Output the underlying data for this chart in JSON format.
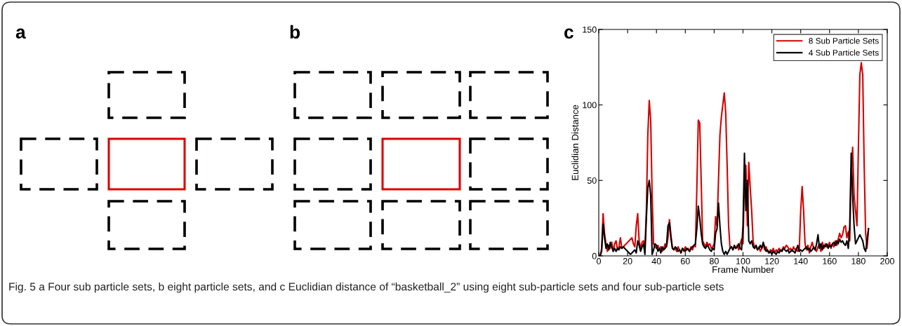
{
  "chart_data": {
    "type": "line",
    "xlabel": "Frame Number",
    "ylabel": "Euclidian Distance",
    "annotations": [
      "a",
      "b",
      "c",
      "Fig. 5 a Four sub particle sets, b eight particle sets, and c Euclidian distance of “basketball_2” using eight sub-particle sets and four sub-particle sets"
    ],
    "x": [
      1,
      2,
      3,
      4,
      5,
      6,
      7,
      8,
      9,
      10,
      11,
      12,
      13,
      14,
      15,
      16,
      17,
      18,
      19,
      20,
      21,
      22,
      23,
      24,
      25,
      26,
      27,
      28,
      29,
      30,
      31,
      32,
      33,
      34,
      35,
      36,
      37,
      38,
      39,
      40,
      41,
      42,
      43,
      44,
      45,
      46,
      47,
      48,
      49,
      50,
      51,
      52,
      53,
      54,
      55,
      56,
      57,
      58,
      59,
      60,
      61,
      62,
      63,
      64,
      65,
      66,
      67,
      68,
      69,
      70,
      71,
      72,
      73,
      74,
      75,
      76,
      77,
      78,
      79,
      80,
      81,
      82,
      83,
      84,
      85,
      86,
      87,
      88,
      89,
      90,
      91,
      92,
      93,
      94,
      95,
      96,
      97,
      98,
      99,
      100,
      101,
      102,
      103,
      104,
      105,
      106,
      107,
      108,
      109,
      110,
      111,
      112,
      113,
      114,
      115,
      116,
      117,
      118,
      119,
      120,
      121,
      122,
      123,
      124,
      125,
      126,
      127,
      128,
      129,
      130,
      131,
      132,
      133,
      134,
      135,
      136,
      137,
      138,
      139,
      140,
      141,
      142,
      143,
      144,
      145,
      146,
      147,
      148,
      149,
      150,
      151,
      152,
      153,
      154,
      155,
      156,
      157,
      158,
      159,
      160,
      161,
      162,
      163,
      164,
      165,
      166,
      167,
      168,
      169,
      170,
      171,
      172,
      173,
      174,
      175,
      176,
      177,
      178,
      179,
      180,
      181,
      182,
      183,
      184,
      185,
      186,
      187
    ],
    "series": [
      {
        "name": "8 Sub Particle Sets",
        "color": "#d40000",
        "values": [
          0,
          5,
          28,
          15,
          8,
          3,
          7,
          5,
          9,
          3,
          8,
          10,
          4,
          6,
          12,
          5,
          6,
          7,
          8,
          9,
          10,
          11,
          12,
          8,
          6,
          20,
          28,
          10,
          5,
          9,
          10,
          5,
          30,
          80,
          103,
          90,
          40,
          8,
          6,
          5,
          7,
          4,
          6,
          3,
          5,
          8,
          6,
          12,
          24,
          14,
          6,
          4,
          5,
          3,
          6,
          4,
          2,
          5,
          3,
          6,
          4,
          5,
          3,
          6,
          4,
          7,
          6,
          45,
          90,
          88,
          50,
          10,
          8,
          6,
          9,
          7,
          8,
          5,
          6,
          8,
          26,
          20,
          50,
          80,
          92,
          100,
          108,
          95,
          60,
          20,
          5,
          6,
          4,
          6,
          5,
          7,
          4,
          8,
          11,
          8,
          50,
          60,
          20,
          62,
          45,
          30,
          10,
          5,
          7,
          4,
          6,
          3,
          5,
          8,
          4,
          6,
          3,
          2,
          4,
          3,
          5,
          2,
          4,
          3,
          5,
          3,
          4,
          6,
          5,
          7,
          6,
          4,
          5,
          3,
          6,
          4,
          5,
          3,
          4,
          30,
          46,
          30,
          8,
          4,
          7,
          2,
          6,
          9,
          5,
          4,
          3,
          6,
          8,
          3,
          9,
          5,
          8,
          6,
          7,
          9,
          5,
          8,
          6,
          10,
          7,
          11,
          15,
          12,
          14,
          19,
          20,
          12,
          16,
          10,
          55,
          72,
          40,
          30,
          20,
          72,
          120,
          128,
          120,
          60,
          15,
          5,
          18
        ]
      },
      {
        "name": "4 Sub Particle Sets",
        "color": "#000000",
        "values": [
          0,
          3,
          21,
          12,
          5,
          8,
          4,
          9,
          6,
          3,
          5,
          3,
          5,
          4,
          6,
          5,
          6,
          5,
          4,
          3,
          2,
          1,
          2,
          3,
          4,
          2,
          10,
          7,
          3,
          6,
          8,
          1,
          25,
          45,
          50,
          40,
          1,
          4,
          8,
          7,
          3,
          5,
          2,
          6,
          4,
          5,
          7,
          20,
          22,
          12,
          5,
          4,
          6,
          5,
          3,
          4,
          2,
          5,
          4,
          3,
          5,
          4,
          3,
          5,
          6,
          7,
          8,
          18,
          33,
          25,
          15,
          8,
          6,
          5,
          7,
          6,
          4,
          3,
          5,
          4,
          15,
          18,
          35,
          20,
          8,
          3,
          1,
          3,
          1,
          3,
          5,
          6,
          4,
          7,
          5,
          6,
          8,
          5,
          4,
          20,
          68,
          30,
          50,
          10,
          8,
          10,
          6,
          5,
          7,
          4,
          5,
          7,
          5,
          9,
          6,
          3,
          4,
          2,
          3,
          1,
          3,
          2,
          1,
          3,
          2,
          4,
          3,
          5,
          4,
          3,
          4,
          2,
          3,
          4,
          3,
          2,
          4,
          7,
          3,
          4,
          3,
          4,
          5,
          6,
          4,
          5,
          3,
          4,
          6,
          4,
          8,
          14,
          5,
          8,
          4,
          7,
          6,
          8,
          5,
          7,
          6,
          8,
          9,
          7,
          10,
          8,
          11,
          9,
          10,
          8,
          7,
          10,
          5,
          20,
          68,
          40,
          20,
          8,
          10,
          12,
          14,
          12,
          10,
          5,
          3,
          10,
          18
        ]
      }
    ],
    "xlim": [
      0,
      200
    ],
    "xticks": [
      0,
      20,
      40,
      60,
      80,
      100,
      120,
      140,
      160,
      180,
      200
    ],
    "ylim": [
      0,
      150
    ],
    "yticks": [
      0,
      50,
      100,
      150
    ],
    "legend": "top right",
    "grid": false,
    "line_style": "solid",
    "marker": "none"
  }
}
